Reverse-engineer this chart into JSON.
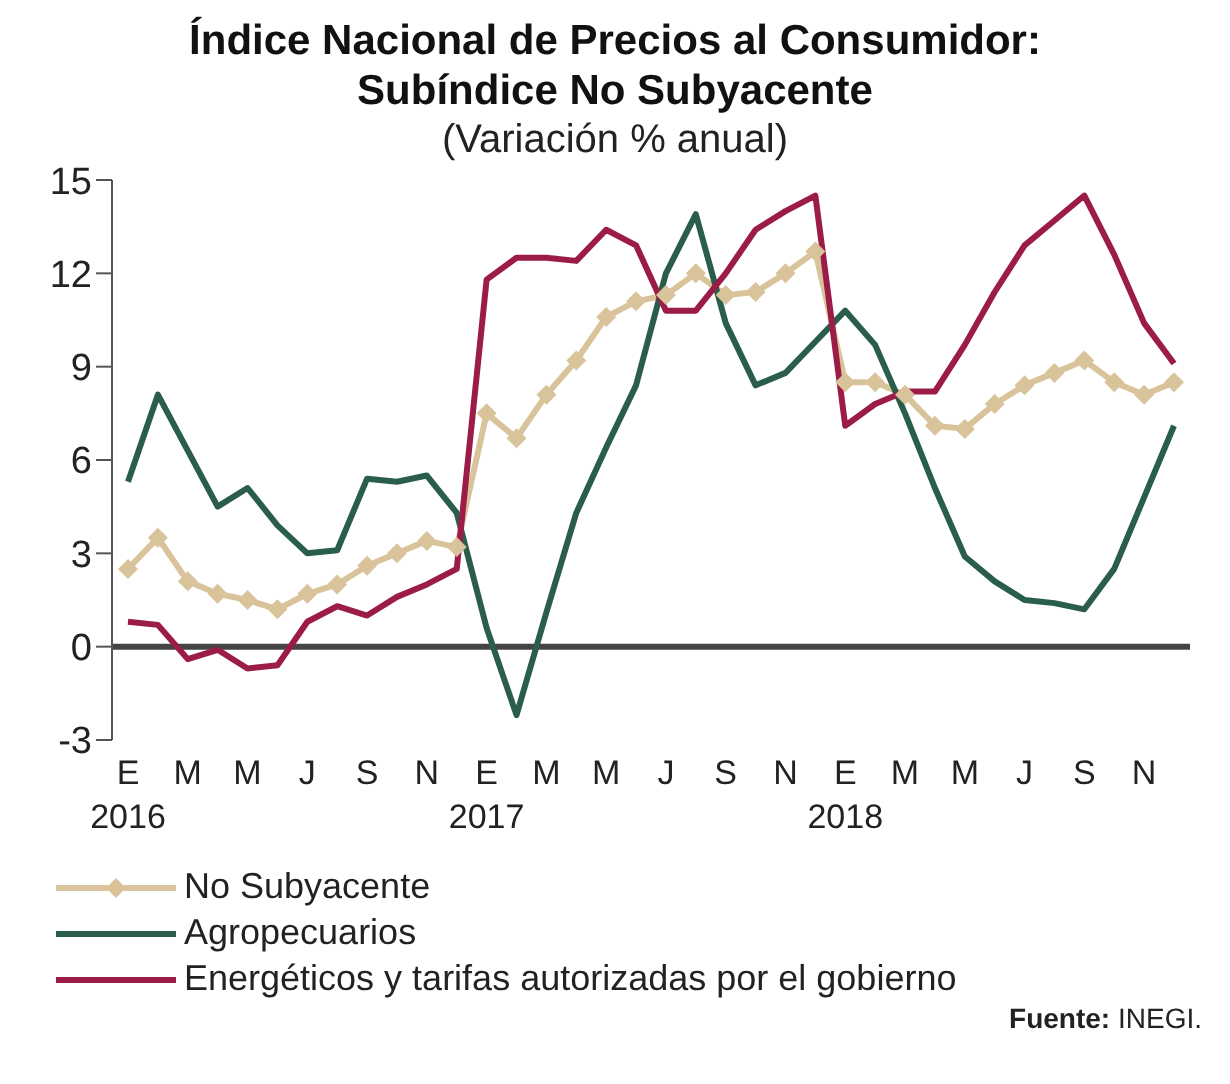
{
  "chart_data": {
    "type": "line",
    "title": "Índice Nacional de Precios al Consumidor:\nSubíndice No Subyacente",
    "subtitle": "(Variación % anual)",
    "categories": [
      "E\n2016",
      null,
      "M",
      null,
      "M",
      null,
      "J",
      null,
      "S",
      null,
      "N",
      null,
      "E\n2017",
      null,
      "M",
      null,
      "M",
      null,
      "J",
      null,
      "S",
      null,
      "N",
      null,
      "E\n2018",
      null,
      "M",
      null,
      "M",
      null,
      "J",
      null,
      "S",
      null,
      "N",
      null
    ],
    "series": [
      {
        "name": "No Subyacente",
        "color": "#d9c39a",
        "marker": "diamond",
        "values": [
          2.5,
          3.5,
          2.1,
          1.7,
          1.5,
          1.2,
          1.7,
          2.0,
          2.6,
          3.0,
          3.4,
          3.2,
          7.5,
          6.7,
          8.1,
          9.2,
          10.6,
          11.1,
          11.3,
          12.0,
          11.3,
          11.4,
          12.0,
          12.7,
          8.5,
          8.5,
          8.1,
          7.1,
          7.0,
          7.8,
          8.4,
          8.8,
          9.2,
          8.5,
          8.1,
          8.5
        ]
      },
      {
        "name": "Agropecuarios",
        "color": "#2a5e4a",
        "marker": "none",
        "values": [
          5.3,
          8.1,
          6.3,
          4.5,
          5.1,
          3.9,
          3.0,
          3.1,
          5.4,
          5.3,
          5.5,
          4.3,
          0.6,
          -2.2,
          1.1,
          4.3,
          6.4,
          8.4,
          12.0,
          13.9,
          10.4,
          8.4,
          8.8,
          9.8,
          10.8,
          9.7,
          7.5,
          5.1,
          2.9,
          2.1,
          1.5,
          1.4,
          1.2,
          2.5,
          4.8,
          7.1
        ]
      },
      {
        "name": "Energéticos y tarifas autorizadas por el gobierno",
        "color": "#9b1c47",
        "marker": "none",
        "values": [
          0.8,
          0.7,
          -0.4,
          -0.1,
          -0.7,
          -0.6,
          0.8,
          1.3,
          1.0,
          1.6,
          2.0,
          2.5,
          11.8,
          12.5,
          12.5,
          12.4,
          13.4,
          12.9,
          10.8,
          10.8,
          12.0,
          13.4,
          14.0,
          14.5,
          7.1,
          7.8,
          8.2,
          8.2,
          9.7,
          11.4,
          12.9,
          13.7,
          14.5,
          12.6,
          10.4,
          9.1
        ]
      }
    ],
    "ylim": [
      -3,
      15
    ],
    "yticks": [
      -3,
      0,
      3,
      6,
      9,
      12,
      15
    ],
    "grid": false,
    "legend": "bottom left",
    "ref_lines": [
      {
        "axis": "y",
        "value": 0,
        "color": "#444444"
      }
    ],
    "annotations": [
      "**Fuente:** INEGI."
    ]
  }
}
